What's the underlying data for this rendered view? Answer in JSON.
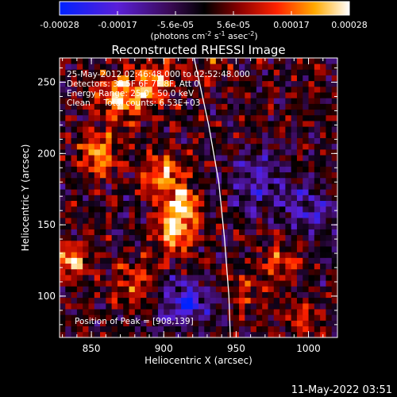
{
  "colorbar": {
    "tick_labels": [
      "-0.00028",
      "-0.00017",
      "-5.6e-05",
      "5.6e-05",
      "0.00017",
      "0.00028"
    ],
    "units": [
      "(photons cm",
      "-2",
      " s",
      "-1",
      " asec",
      "-2",
      ")"
    ],
    "range": [
      -0.00028,
      0.00028
    ],
    "colormap": "blue-purple-black-red-yellow-white"
  },
  "plot": {
    "title": "Reconstructed RHESSI Image",
    "info_lines": [
      "25-May-2012 02:46:48.000 to 02:52:48.000",
      "Detectors: 3F 5F 6F 7F 8F, Att 0",
      "Energy Range: 25.0 - 50.0 keV",
      "Clean     Total counts: 6.53E+03"
    ],
    "peak_label": "Position of Peak = [908,139]",
    "footer_timestamp": "11-May-2022 03:51"
  },
  "chart_data": {
    "type": "heatmap",
    "title": "Reconstructed RHESSI Image",
    "xlabel": "Heliocentric X (arcsec)",
    "ylabel": "Heliocentric Y (arcsec)",
    "xlim": [
      828,
      1020
    ],
    "ylim": [
      71,
      267
    ],
    "xticks": [
      850,
      900,
      950,
      1000
    ],
    "yticks": [
      100,
      150,
      200,
      250
    ],
    "pixel_size_arcsec": 4,
    "peak": [
      908,
      139
    ],
    "limb_curve": [
      [
        921,
        267
      ],
      [
        931,
        220
      ],
      [
        938,
        180
      ],
      [
        942,
        140
      ],
      [
        945,
        100
      ],
      [
        946,
        71
      ]
    ],
    "emission_blobs": [
      {
        "x": 908,
        "y": 145,
        "sigma": 9,
        "amplitude": 1.0
      },
      {
        "x": 912,
        "y": 165,
        "sigma": 8,
        "amplitude": 0.85
      },
      {
        "x": 900,
        "y": 185,
        "sigma": 10,
        "amplitude": 0.7
      },
      {
        "x": 870,
        "y": 240,
        "sigma": 12,
        "amplitude": 0.8
      },
      {
        "x": 895,
        "y": 250,
        "sigma": 10,
        "amplitude": 0.6
      },
      {
        "x": 855,
        "y": 200,
        "sigma": 10,
        "amplitude": 0.65
      },
      {
        "x": 835,
        "y": 125,
        "sigma": 8,
        "amplitude": 0.8
      },
      {
        "x": 880,
        "y": 110,
        "sigma": 10,
        "amplitude": 0.5
      },
      {
        "x": 980,
        "y": 125,
        "sigma": 9,
        "amplitude": 0.45
      },
      {
        "x": 955,
        "y": 105,
        "sigma": 8,
        "amplitude": 0.4
      },
      {
        "x": 995,
        "y": 85,
        "sigma": 8,
        "amplitude": 0.4
      },
      {
        "x": 935,
        "y": 260,
        "sigma": 8,
        "amplitude": 0.35
      }
    ],
    "negative_regions": [
      {
        "x": 915,
        "y": 95,
        "sigma": 12,
        "amplitude": 0.7
      },
      {
        "x": 965,
        "y": 180,
        "sigma": 14,
        "amplitude": 0.45
      },
      {
        "x": 1000,
        "y": 160,
        "sigma": 12,
        "amplitude": 0.5
      }
    ]
  }
}
